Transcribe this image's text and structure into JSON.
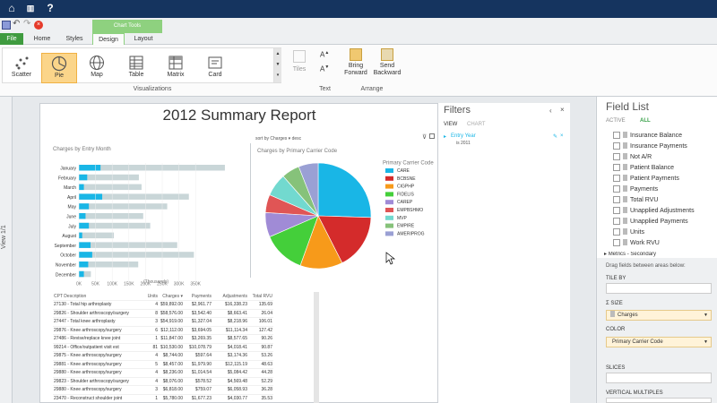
{
  "app": {
    "qat_icons": [
      "save-icon",
      "undo-icon",
      "redo-icon",
      "close-icon"
    ],
    "colors": {
      "titlebar": "#15345f",
      "accent_green": "#8ed17f",
      "bar_highlight": "#19b6e6",
      "bar_base": "#c9d6d8"
    }
  },
  "tabs": {
    "file": "File",
    "home": "Home",
    "styles": "Styles",
    "design": "Design",
    "layout": "Layout",
    "chart_tools": "Chart Tools"
  },
  "ribbon": {
    "visualizations": [
      "Scatter",
      "Pie",
      "Map",
      "Table",
      "Matrix",
      "Card"
    ],
    "visualizations_label": "Visualizations",
    "tiles": "Tiles",
    "text_label": "Text",
    "bring_forward": "Bring Forward",
    "send_backward": "Send Backward",
    "arrange_label": "Arrange"
  },
  "leftstrip": {
    "view": "View 1/1"
  },
  "report": {
    "title": "2012 Summary Report",
    "bar_chart": {
      "title": "Charges by Entry Month",
      "xlabel": "(Thousands)"
    },
    "pie_chart": {
      "title": "Charges by Primary Carrier Code",
      "sort": "sort by Charges",
      "desc": "desc",
      "legend_title": "Primary Carrier Code"
    },
    "table": {
      "headers": [
        "CPT Description",
        "Units",
        "Charges ▾",
        "Payments",
        "Adjustments",
        "Total RVU"
      ],
      "rows": [
        [
          "27130 - Total hip arthroplasty",
          "4",
          "$59,892.00",
          "$2,961.77",
          "$16,338.23",
          "135.69"
        ],
        [
          "29826 - Shoulder arthroscopy/surgery",
          "8",
          "$58,576.00",
          "$3,542.40",
          "$8,663.41",
          "26.04"
        ],
        [
          "27447 - Total knee arthroplasty",
          "3",
          "$54,919.00",
          "$1,327.04",
          "$8,218.96",
          "106.01"
        ],
        [
          "29876 - Knee arthroscopy/surgery",
          "6",
          "$12,112.00",
          "$3,694.05",
          "$11,114.34",
          "127.42"
        ],
        [
          "27486 - Revise/replace knee joint",
          "1",
          "$11,847.00",
          "$3,269.35",
          "$8,577.65",
          "90.26"
        ],
        [
          "99214 - Office/outpatient visit est",
          "81",
          "$10,530.00",
          "$10,078.79",
          "$4,018.41",
          "90.87"
        ],
        [
          "29875 - Knee arthroscopy/surgery",
          "4",
          "$8,744.00",
          "$597.64",
          "$3,174.36",
          "53.26"
        ],
        [
          "29881 - Knee arthroscopy/surgery",
          "5",
          "$8,457.00",
          "$1,979.90",
          "$12,115.19",
          "48.63"
        ],
        [
          "29880 - Knee arthroscopy/surgery",
          "4",
          "$8,236.00",
          "$1,014.54",
          "$5,084.42",
          "44.28"
        ],
        [
          "29823 - Shoulder arthroscopy/surgery",
          "4",
          "$8,076.00",
          "$578.52",
          "$4,569.48",
          "52.29"
        ],
        [
          "29880 - Knee arthroscopy/surgery",
          "3",
          "$6,818.00",
          "$759.07",
          "$6,058.93",
          "36.28"
        ],
        [
          "23470 - Reconstruct shoulder joint",
          "1",
          "$5,780.00",
          "$1,677.23",
          "$4,030.77",
          "35.53"
        ]
      ]
    }
  },
  "chart_data": [
    {
      "type": "bar",
      "title": "Charges by Entry Month",
      "xlabel": "(Thousands)",
      "categories": [
        "January",
        "February",
        "March",
        "April",
        "May",
        "June",
        "July",
        "August",
        "September",
        "October",
        "November",
        "December"
      ],
      "series": [
        {
          "values": [
            65,
            25,
            15,
            70,
            30,
            20,
            30,
            10,
            35,
            40,
            28,
            15
          ]
        },
        {
          "values": [
            438,
            180,
            188,
            330,
            265,
            193,
            214,
            105,
            295,
            345,
            178,
            36
          ]
        }
      ],
      "xticks": [
        "0K",
        "50K",
        "100K",
        "150K",
        "200K",
        "250K",
        "300K",
        "350K"
      ],
      "xlim": [
        0,
        500
      ]
    },
    {
      "type": "pie",
      "title": "Charges by Primary Carrier Code",
      "legend_title": "Primary Carrier Code",
      "categories": [
        "CARE",
        "BCBSNE",
        "CIGPHP",
        "FIDELIS",
        "CAREP",
        "EMPBSHMO",
        "MVP",
        "EMPIRE",
        "AMERIPROG"
      ],
      "values": [
        25.5,
        17,
        13,
        13,
        7.5,
        5.5,
        7,
        5.5,
        6
      ],
      "colors": [
        "#19b6e6",
        "#d42b2b",
        "#f79a1a",
        "#44cf3a",
        "#a08bd6",
        "#e05555",
        "#72d9cf",
        "#86c27a",
        "#9aa0d4"
      ],
      "start_angle": 0
    }
  ],
  "filters": {
    "title": "Filters",
    "view_tab": "VIEW",
    "chart_tab": "CHART",
    "filter_name": "Entry Year",
    "filter_value": "is 2011"
  },
  "fieldlist": {
    "title": "Field List",
    "tab_active": "ACTIVE",
    "tab_all": "ALL",
    "items": [
      "Insurance Balance",
      "Insurance Payments",
      "Not A/R",
      "Patient Balance",
      "Patient Payments",
      "Payments",
      "Total RVU",
      "Unapplied Adjustments",
      "Unapplied Payments",
      "Units",
      "Work RVU"
    ],
    "metrics": "Metrics - Secondary",
    "drag_hint": "Drag fields between areas below:",
    "tile_by": "TILE BY",
    "size": "Σ SIZE",
    "size_value": "Charges",
    "color": "COLOR",
    "color_value": "Primary Carrier Code",
    "slices": "SLICES",
    "vertical": "VERTICAL MULTIPLES"
  }
}
